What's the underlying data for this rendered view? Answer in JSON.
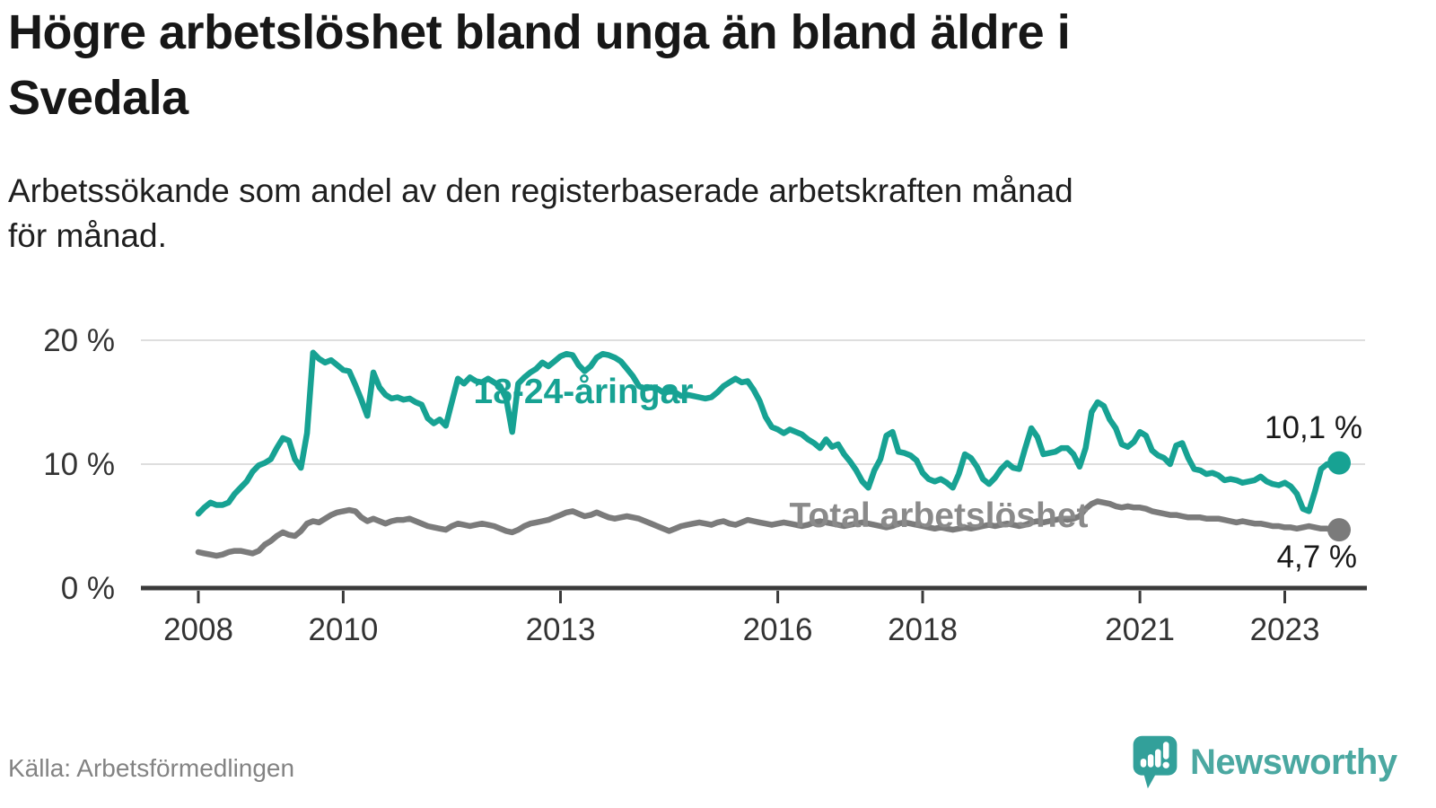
{
  "header": {
    "title": "Högre arbetslöshet bland unga än bland äldre i Svedala",
    "title_lines": [
      "Högre arbetslöshet bland unga än bland äldre i",
      "Svedala"
    ],
    "subtitle": "Arbetssökande som andel av den registerbaserade arbetskraften månad för månad.",
    "subtitle_lines": [
      "Arbetssökande som andel av den registerbaserade arbetskraften månad",
      "för månad."
    ]
  },
  "footer": {
    "source": "Källa: Arbetsförmedlingen",
    "brand": "Newsworthy",
    "brand_icon": "newsworthy-speech-bubble-bar-chart-icon",
    "brand_color": "#4BA8A1",
    "brand_bubble_color": "#32A09A"
  },
  "chart_data": {
    "type": "line",
    "title": "Högre arbetslöshet bland unga än bland äldre i Svedala",
    "x_unit": "month",
    "x_start": {
      "year": 2008,
      "month": 1
    },
    "x_end": {
      "year": 2023,
      "month": 10
    },
    "x_ticks": [
      {
        "year": 2008,
        "label": "2008"
      },
      {
        "year": 2010,
        "label": "2010"
      },
      {
        "year": 2013,
        "label": "2013"
      },
      {
        "year": 2016,
        "label": "2016"
      },
      {
        "year": 2018,
        "label": "2018"
      },
      {
        "year": 2021,
        "label": "2021"
      },
      {
        "year": 2023,
        "label": "2023"
      }
    ],
    "y_ticks": [
      {
        "value": 0,
        "label": "0 %"
      },
      {
        "value": 10,
        "label": "10 %"
      },
      {
        "value": 20,
        "label": "20 %"
      }
    ],
    "ylim": [
      0,
      21.5
    ],
    "grid": "horizontal",
    "legend_position": "inline-labels",
    "colors": {
      "grid": "#DEDEDE",
      "axis": "#3A3A3A",
      "tick_text": "#333333"
    },
    "series": [
      {
        "name": "18-24-åringar",
        "color": "#17A293",
        "label_color": "#17A293",
        "end_label": "10,1 %",
        "end_value": 10.1,
        "values": [
          6.0,
          6.5,
          6.9,
          6.7,
          6.7,
          6.9,
          7.6,
          8.1,
          8.6,
          9.4,
          9.9,
          10.1,
          10.4,
          11.3,
          12.1,
          11.9,
          10.4,
          9.7,
          12.5,
          19.0,
          18.5,
          18.2,
          18.4,
          18.0,
          17.6,
          17.5,
          16.4,
          15.2,
          13.9,
          17.4,
          16.2,
          15.6,
          15.3,
          15.4,
          15.2,
          15.3,
          15.0,
          14.8,
          13.7,
          13.3,
          13.6,
          13.1,
          15.0,
          16.9,
          16.5,
          17.0,
          16.7,
          16.6,
          16.9,
          16.6,
          16.3,
          15.3,
          12.6,
          16.5,
          17.0,
          17.4,
          17.7,
          18.2,
          17.9,
          18.3,
          18.7,
          18.9,
          18.8,
          18.0,
          17.5,
          17.9,
          18.6,
          18.9,
          18.8,
          18.6,
          18.3,
          17.7,
          17.1,
          16.3,
          16.1,
          16.2,
          16.1,
          15.8,
          16.0,
          15.8,
          15.5,
          15.6,
          15.5,
          15.4,
          15.3,
          15.4,
          15.8,
          16.3,
          16.6,
          16.9,
          16.6,
          16.7,
          16.0,
          15.1,
          13.8,
          13.0,
          12.8,
          12.5,
          12.8,
          12.6,
          12.4,
          12.0,
          11.7,
          11.3,
          12.0,
          11.4,
          11.6,
          10.8,
          10.2,
          9.5,
          8.6,
          8.1,
          9.5,
          10.4,
          12.3,
          12.6,
          11.0,
          10.9,
          10.7,
          10.3,
          9.3,
          8.8,
          8.6,
          8.8,
          8.5,
          8.1,
          9.2,
          10.8,
          10.5,
          9.8,
          8.8,
          8.4,
          8.9,
          9.6,
          10.1,
          9.7,
          9.6,
          11.3,
          12.9,
          12.2,
          10.8,
          10.9,
          11.0,
          11.3,
          11.3,
          10.8,
          9.8,
          11.3,
          14.2,
          15.0,
          14.7,
          13.6,
          12.9,
          11.6,
          11.4,
          11.8,
          12.6,
          12.3,
          11.1,
          10.7,
          10.5,
          10.0,
          11.5,
          11.7,
          10.5,
          9.6,
          9.5,
          9.2,
          9.3,
          9.1,
          8.7,
          8.8,
          8.7,
          8.5,
          8.6,
          8.7,
          9.0,
          8.6,
          8.4,
          8.3,
          8.5,
          8.2,
          7.6,
          6.4,
          6.2,
          7.8,
          9.6,
          10.0,
          9.8,
          10.1
        ]
      },
      {
        "name": "Total arbetslöshet",
        "color": "#7B7B7B",
        "label_color": "#8A8A8A",
        "end_label": "4,7 %",
        "end_value": 4.7,
        "values": [
          2.9,
          2.8,
          2.7,
          2.6,
          2.7,
          2.9,
          3.0,
          3.0,
          2.9,
          2.8,
          3.0,
          3.5,
          3.8,
          4.2,
          4.5,
          4.3,
          4.2,
          4.6,
          5.2,
          5.4,
          5.3,
          5.6,
          5.9,
          6.1,
          6.2,
          6.3,
          6.2,
          5.7,
          5.4,
          5.6,
          5.4,
          5.2,
          5.4,
          5.5,
          5.5,
          5.6,
          5.4,
          5.2,
          5.0,
          4.9,
          4.8,
          4.7,
          5.0,
          5.2,
          5.1,
          5.0,
          5.1,
          5.2,
          5.1,
          5.0,
          4.8,
          4.6,
          4.5,
          4.7,
          5.0,
          5.2,
          5.3,
          5.4,
          5.5,
          5.7,
          5.9,
          6.1,
          6.2,
          6.0,
          5.8,
          5.9,
          6.1,
          5.9,
          5.7,
          5.6,
          5.7,
          5.8,
          5.7,
          5.6,
          5.4,
          5.2,
          5.0,
          4.8,
          4.6,
          4.8,
          5.0,
          5.1,
          5.2,
          5.3,
          5.2,
          5.1,
          5.3,
          5.4,
          5.2,
          5.1,
          5.3,
          5.5,
          5.4,
          5.3,
          5.2,
          5.1,
          5.2,
          5.3,
          5.2,
          5.1,
          5.0,
          5.1,
          5.3,
          5.4,
          5.3,
          5.2,
          5.1,
          5.0,
          5.1,
          5.2,
          5.3,
          5.2,
          5.1,
          5.0,
          4.9,
          5.0,
          5.2,
          5.3,
          5.2,
          5.1,
          5.0,
          4.9,
          4.8,
          4.9,
          4.8,
          4.7,
          4.8,
          4.9,
          4.8,
          4.9,
          5.0,
          5.1,
          5.0,
          5.1,
          5.2,
          5.1,
          5.0,
          5.1,
          5.3,
          5.4,
          5.3,
          5.4,
          5.5,
          5.6,
          5.5,
          5.6,
          5.8,
          6.4,
          6.8,
          7.0,
          6.9,
          6.8,
          6.6,
          6.5,
          6.6,
          6.5,
          6.5,
          6.4,
          6.2,
          6.1,
          6.0,
          5.9,
          5.9,
          5.8,
          5.7,
          5.7,
          5.7,
          5.6,
          5.6,
          5.6,
          5.5,
          5.4,
          5.3,
          5.4,
          5.3,
          5.2,
          5.2,
          5.1,
          5.0,
          5.0,
          4.9,
          4.9,
          4.8,
          4.9,
          5.0,
          4.9,
          4.8,
          4.8,
          4.7,
          4.7
        ]
      }
    ]
  }
}
